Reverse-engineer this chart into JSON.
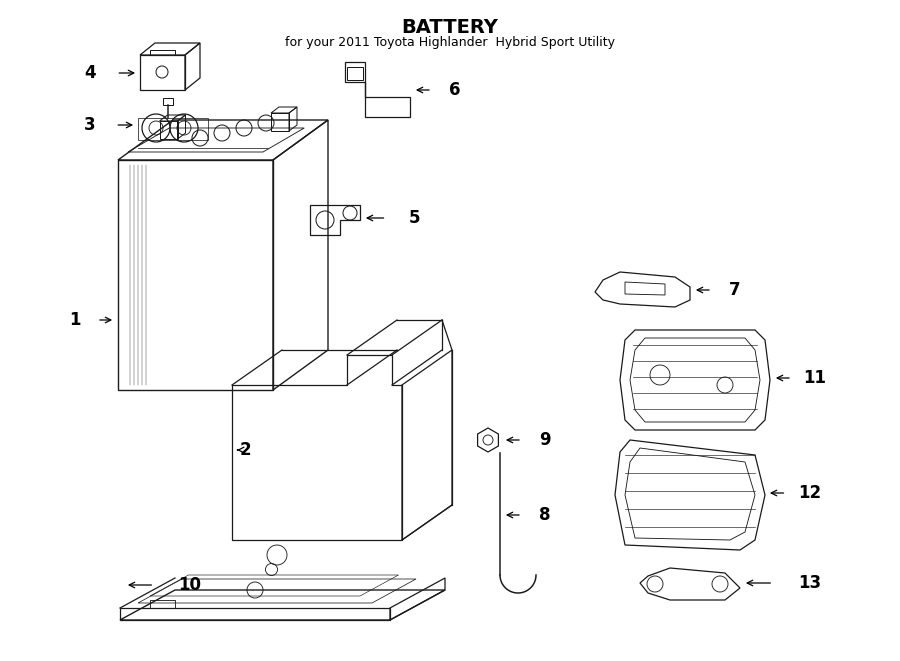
{
  "title": "BATTERY",
  "subtitle": "for your 2011 Toyota Highlander  Hybrid Sport Utility",
  "bg_color": "#ffffff",
  "line_color": "#1a1a1a",
  "text_color": "#000000",
  "figsize": [
    9.0,
    6.61
  ],
  "dpi": 100,
  "label_fontsize": 12,
  "title_fontsize": 14,
  "subtitle_fontsize": 9,
  "lw": 0.9
}
